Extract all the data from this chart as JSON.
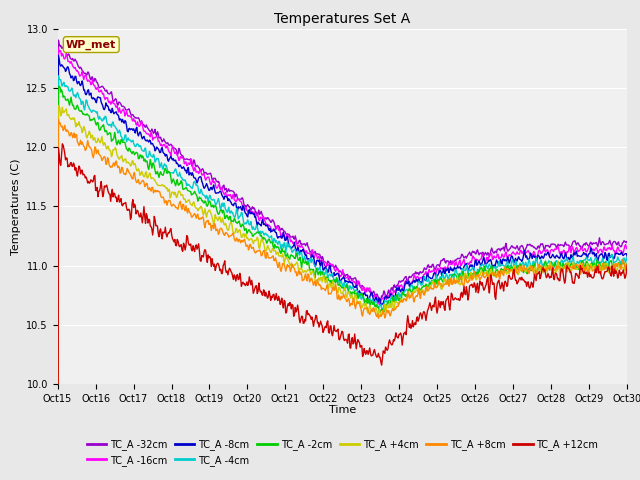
{
  "title": "Temperatures Set A",
  "xlabel": "Time",
  "ylabel": "Temperatures (C)",
  "ylim": [
    10.0,
    13.0
  ],
  "xlim": [
    0,
    15
  ],
  "tick_labels": [
    "Oct 15",
    "Oct 16",
    "Oct 17",
    "Oct 18",
    "Oct 19",
    "Oct 20",
    "Oct 21",
    "Oct 22",
    "Oct 23",
    "Oct 24",
    "Oct 25",
    "Oct 26",
    "Oct 27",
    "Oct 28",
    "Oct 29",
    "Oct 30"
  ],
  "yticks": [
    10.0,
    10.5,
    11.0,
    11.5,
    12.0,
    12.5,
    13.0
  ],
  "series_params": [
    {
      "label": "TC_A -32cm",
      "color": "#9900cc",
      "start": 12.9,
      "end": 11.2,
      "trough": 10.72,
      "noise": 0.022,
      "seed": 1
    },
    {
      "label": "TC_A -16cm",
      "color": "#ff00ff",
      "start": 12.85,
      "end": 11.15,
      "trough": 10.7,
      "noise": 0.025,
      "seed": 2
    },
    {
      "label": "TC_A -8cm",
      "color": "#0000cc",
      "start": 12.75,
      "end": 11.1,
      "trough": 10.68,
      "noise": 0.028,
      "seed": 3
    },
    {
      "label": "TC_A -4cm",
      "color": "#00cccc",
      "start": 12.6,
      "end": 11.05,
      "trough": 10.65,
      "noise": 0.03,
      "seed": 4
    },
    {
      "label": "TC_A -2cm",
      "color": "#00cc00",
      "start": 12.5,
      "end": 11.02,
      "trough": 10.63,
      "noise": 0.03,
      "seed": 5
    },
    {
      "label": "TC_A +4cm",
      "color": "#cccc00",
      "start": 12.35,
      "end": 11.0,
      "trough": 10.6,
      "noise": 0.032,
      "seed": 6
    },
    {
      "label": "TC_A +8cm",
      "color": "#ff8800",
      "start": 12.22,
      "end": 11.0,
      "trough": 10.57,
      "noise": 0.033,
      "seed": 7
    },
    {
      "label": "TC_A +12cm",
      "color": "#cc0000",
      "start": 11.97,
      "end": 10.95,
      "trough": 10.22,
      "noise": 0.05,
      "seed": 8
    }
  ],
  "wp_met_label": "WP_met",
  "background_color": "#e8e8e8",
  "plot_bg_color": "#f0f0f0",
  "linewidth": 1.0,
  "title_fontsize": 10,
  "axis_fontsize": 8,
  "tick_fontsize": 7,
  "legend_fontsize": 7
}
